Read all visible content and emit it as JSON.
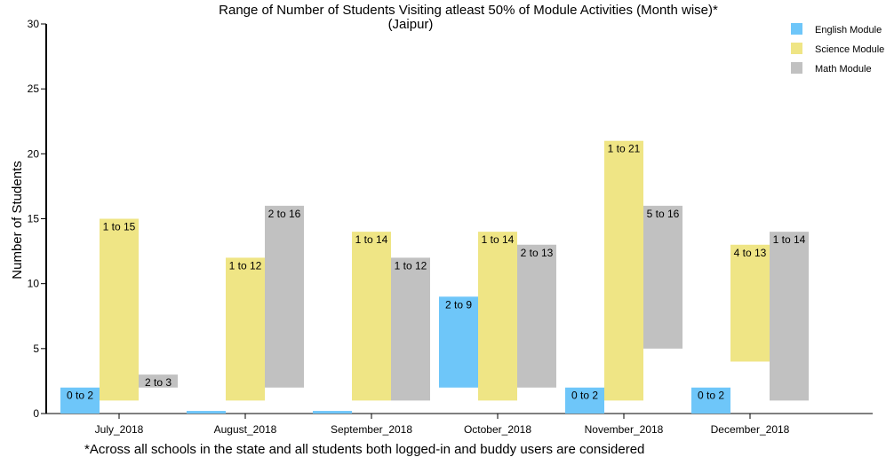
{
  "chart_data": {
    "type": "bar",
    "subtype": "floating-range",
    "title": "Range of Number of Students Visiting atleast 50% of Module Activities (Month wise)*",
    "subtitle": "(Jaipur)",
    "xlabel": "",
    "ylabel": "Number of Students",
    "ylim": [
      0,
      30
    ],
    "yticks": [
      0,
      5,
      10,
      15,
      20,
      25,
      30
    ],
    "categories": [
      "July_2018",
      "August_2018",
      "September_2018",
      "October_2018",
      "November_2018",
      "December_2018"
    ],
    "series": [
      {
        "name": "English Module",
        "color": "#6ec6f9",
        "ranges": [
          [
            0,
            2
          ],
          [
            0,
            0.2
          ],
          [
            0,
            0.2
          ],
          [
            2,
            9
          ],
          [
            0,
            2
          ],
          [
            0,
            2
          ]
        ],
        "labels": [
          "0 to 2",
          "",
          "",
          "2 to 9",
          "0 to 2",
          "0 to 2"
        ]
      },
      {
        "name": "Science Module",
        "color": "#efe585",
        "ranges": [
          [
            1,
            15
          ],
          [
            1,
            12
          ],
          [
            1,
            14
          ],
          [
            1,
            14
          ],
          [
            1,
            21
          ],
          [
            4,
            13
          ]
        ],
        "labels": [
          "1 to 15",
          "1 to 12",
          "1 to 14",
          "1 to 14",
          "1 to 21",
          "4 to 13"
        ]
      },
      {
        "name": "Math Module",
        "color": "#c1c1c1",
        "ranges": [
          [
            2,
            3
          ],
          [
            2,
            16
          ],
          [
            1,
            12
          ],
          [
            2,
            13
          ],
          [
            5,
            16
          ],
          [
            1,
            14
          ]
        ],
        "labels": [
          "2 to 3",
          "2 to 16",
          "1 to 12",
          "2 to 13",
          "5 to 16",
          "1 to 14"
        ]
      }
    ],
    "legend_position": "top-right",
    "grid": false,
    "footnote": "*Across all schools in the state and all students both logged-in and buddy users are considered"
  }
}
